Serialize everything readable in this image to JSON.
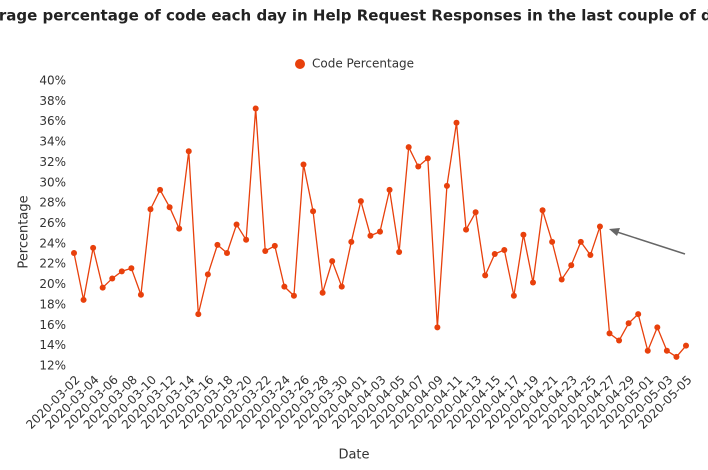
{
  "chart_data": {
    "type": "line",
    "title": "Average percentage of code each day in Help Request Responses in the last couple of days",
    "x_label": "Date",
    "y_label": "Percentage",
    "categories": [
      "2020-03-02",
      null,
      "2020-03-04",
      null,
      "2020-03-06",
      null,
      "2020-03-08",
      null,
      "2020-03-10",
      null,
      "2020-03-12",
      null,
      "2020-03-14",
      null,
      "2020-03-16",
      null,
      "2020-03-18",
      null,
      "2020-03-20",
      null,
      "2020-03-22",
      null,
      "2020-03-24",
      null,
      "2020-03-26",
      null,
      "2020-03-28",
      null,
      "2020-03-30",
      null,
      "2020-04-01",
      null,
      "2020-04-03",
      null,
      "2020-04-05",
      null,
      "2020-04-07",
      null,
      "2020-04-09",
      null,
      "2020-04-11",
      null,
      "2020-04-13",
      null,
      "2020-04-15",
      null,
      "2020-04-17",
      null,
      "2020-04-19",
      null,
      "2020-04-21",
      null,
      "2020-04-23",
      null,
      "2020-04-25",
      null,
      "2020-04-27",
      null,
      "2020-04-29",
      null,
      "2020-05-01",
      null,
      "2020-05-03",
      null,
      "2020-05-05"
    ],
    "series": [
      {
        "name": "Code Percentage",
        "color": "#e8400c",
        "values": [
          23.1,
          18.5,
          23.6,
          19.7,
          20.6,
          21.3,
          21.6,
          19.0,
          27.4,
          29.3,
          27.6,
          25.5,
          33.1,
          17.1,
          21.0,
          23.9,
          23.1,
          25.9,
          24.4,
          37.3,
          23.3,
          23.8,
          19.8,
          18.9,
          31.8,
          27.2,
          19.2,
          22.3,
          19.8,
          24.2,
          28.2,
          24.8,
          25.2,
          29.3,
          23.2,
          33.5,
          31.6,
          32.4,
          15.8,
          29.7,
          35.9,
          25.4,
          27.1,
          20.9,
          23.0,
          23.4,
          18.9,
          24.9,
          20.2,
          27.3,
          24.2,
          20.5,
          21.9,
          24.2,
          22.9,
          25.7,
          15.2,
          14.5,
          16.2,
          17.1,
          13.5,
          15.8,
          13.5,
          12.9,
          14.0
        ]
      }
    ],
    "ylim": [
      12,
      40
    ],
    "yticks": [
      {
        "value": 12,
        "label": "12%"
      },
      {
        "value": 14,
        "label": "14%"
      },
      {
        "value": 16,
        "label": "16%"
      },
      {
        "value": 18,
        "label": "18%"
      },
      {
        "value": 20,
        "label": "20%"
      },
      {
        "value": 22,
        "label": "22%"
      },
      {
        "value": 24,
        "label": "24%"
      },
      {
        "value": 26,
        "label": "26%"
      },
      {
        "value": 28,
        "label": "28%"
      },
      {
        "value": 30,
        "label": "30%"
      },
      {
        "value": 32,
        "label": "32%"
      },
      {
        "value": 34,
        "label": "34%"
      },
      {
        "value": 36,
        "label": "36%"
      },
      {
        "value": 38,
        "label": "38%"
      },
      {
        "value": 40,
        "label": "40%"
      }
    ],
    "grid": false
  }
}
